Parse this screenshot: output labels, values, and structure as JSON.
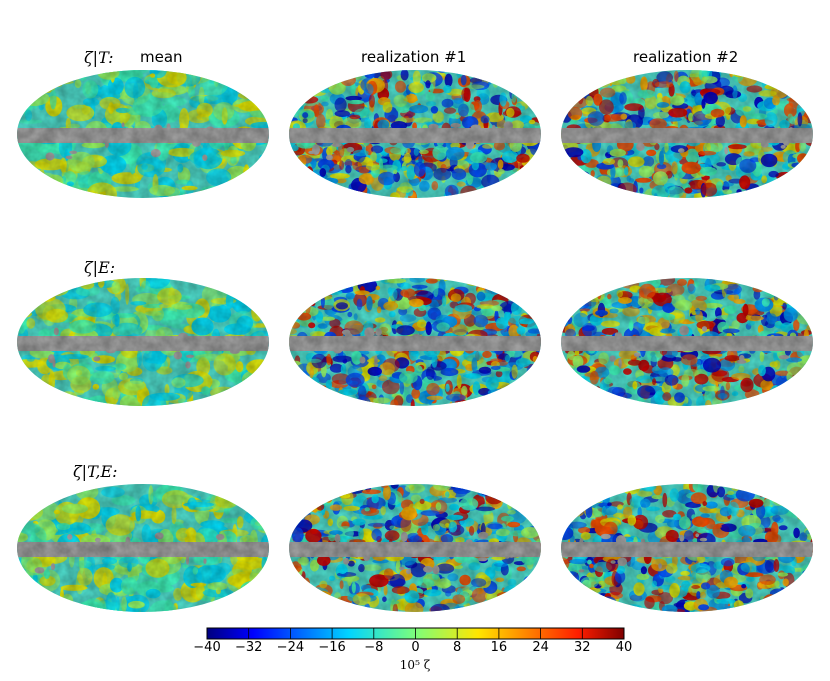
{
  "columns": [
    "mean",
    "realization #1",
    "realization #2"
  ],
  "rows": [
    "ζ|T:",
    "ζ|E:",
    "ζ|T,E:"
  ],
  "colorbar": {
    "ticks": [
      "−40",
      "−32",
      "−24",
      "−16",
      "−8",
      "0",
      "8",
      "16",
      "24",
      "32",
      "40"
    ],
    "label": "10⁵ ζ",
    "min": -40,
    "max": 40
  },
  "mask_color": "#a6a6a6"
}
